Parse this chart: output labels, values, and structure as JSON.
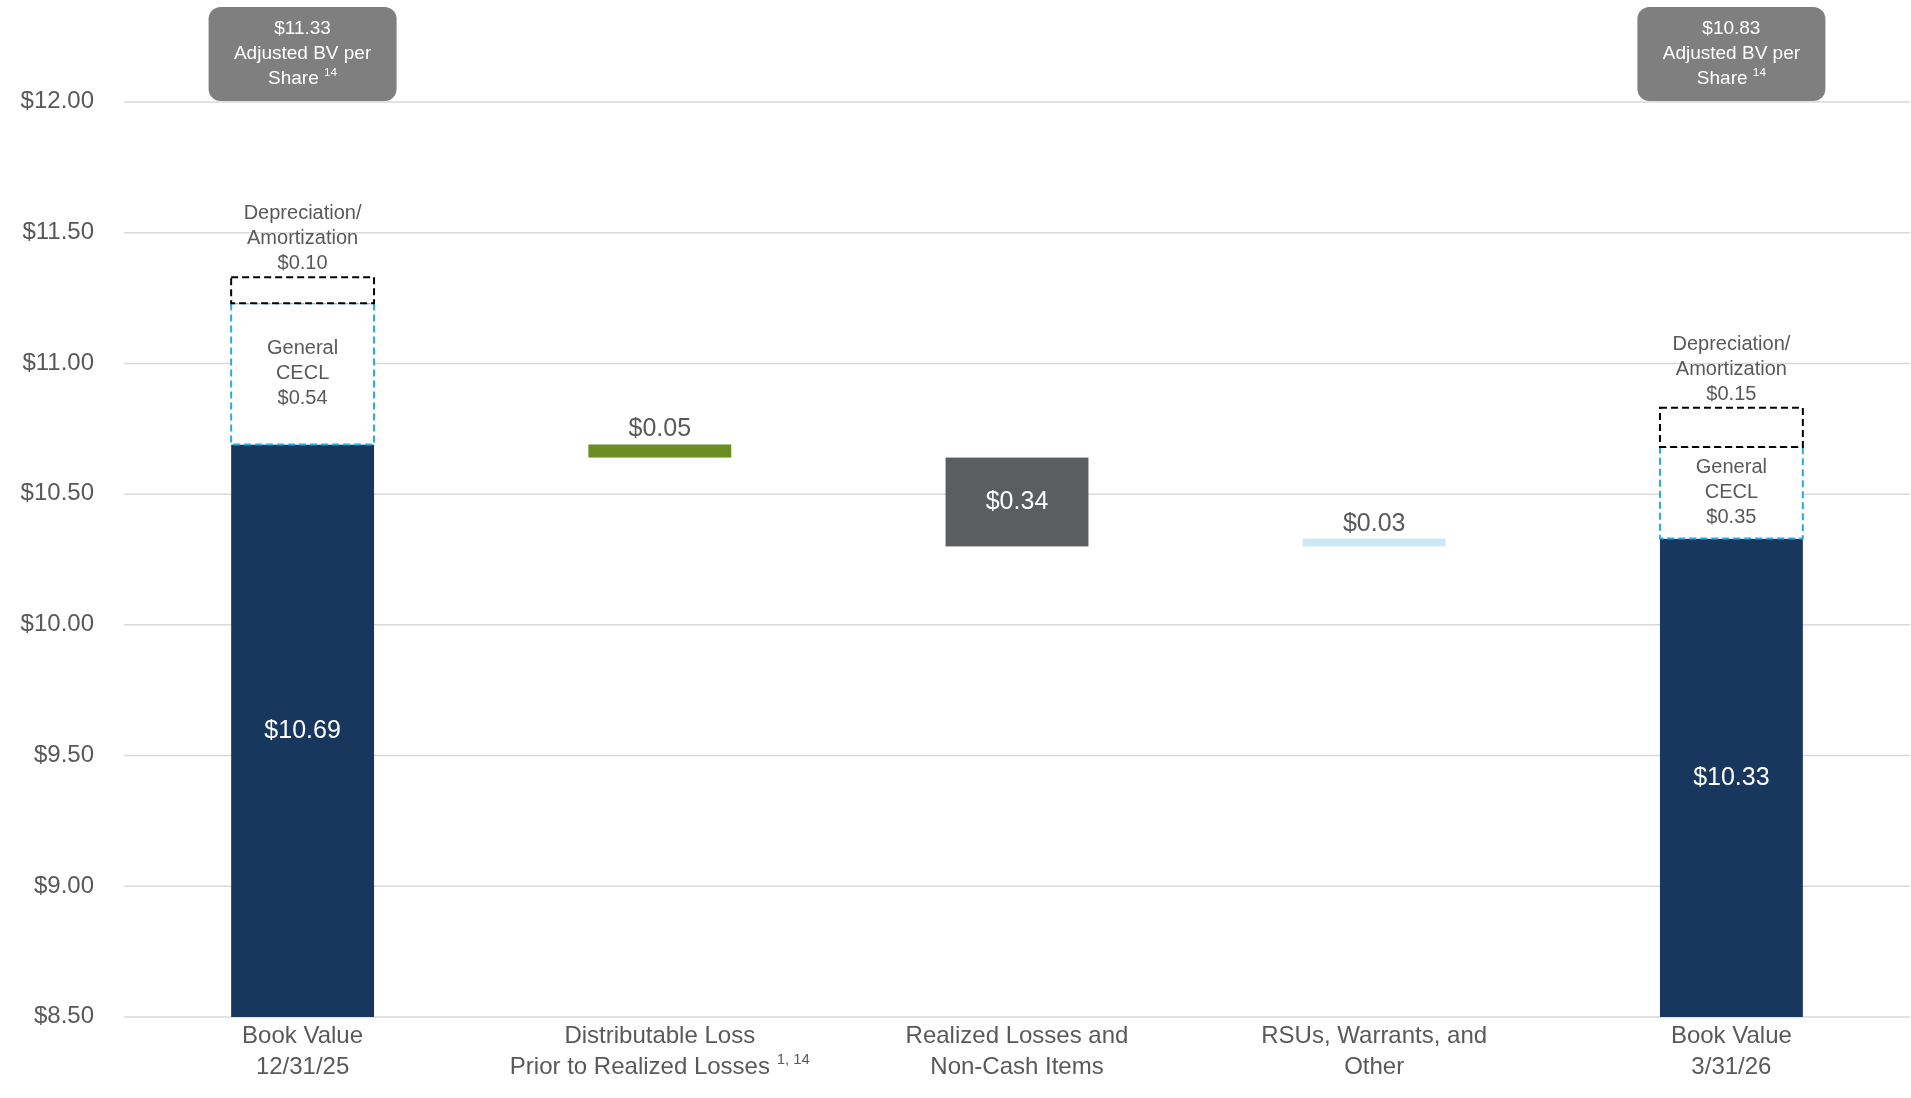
{
  "chart_data": {
    "type": "bar",
    "categories": [
      "Book Value\n12/31/25",
      "Distributable Loss\nPrior to Realized Losses $^{1, 14}$",
      "Realized Losses and\nNon-Cash Items",
      "RSUs, Warrants, and\nOther",
      "Book Value\n3/31/26"
    ],
    "series": [
      {
        "base": [
          null,
          10.64,
          10.3,
          10.3,
          null
        ],
        "colors": [
          "#17375e",
          "#6b8e23",
          "#5a5e60",
          "#c9e9f6",
          "#17375e"
        ],
        "values": [
          10.69,
          0.05,
          0.34,
          0.03,
          10.33
        ],
        "value_labels": [
          "$10.69",
          "$0.05",
          "$0.34",
          "$0.03",
          "$10.33"
        ]
      },
      {
        "name": "General CECL",
        "base": [
          10.69,
          null,
          null,
          null,
          10.33
        ],
        "color": "#29abe2",
        "line_style": "dashed",
        "values": [
          0.54,
          null,
          null,
          null,
          0.35
        ],
        "value_labels": [
          "$0.54",
          null,
          null,
          null,
          "$0.35"
        ]
      },
      {
        "name": "Depreciation/Amortization",
        "base": [
          11.23,
          null,
          null,
          null,
          10.68
        ],
        "color": "#000000",
        "line_style": "dashed",
        "values": [
          0.1,
          null,
          null,
          null,
          0.15
        ],
        "value_labels": [
          "$0.10",
          null,
          null,
          null,
          "$0.15"
        ]
      }
    ],
    "ylim": [
      8.5,
      12.0
    ],
    "yticks": [
      {
        "value": 8.5,
        "label": "$8.50"
      },
      {
        "value": 9.0,
        "label": "$9.00"
      },
      {
        "value": 9.5,
        "label": "$9.50"
      },
      {
        "value": 10.0,
        "label": "$10.00"
      },
      {
        "value": 10.5,
        "label": "$10.50"
      },
      {
        "value": 11.0,
        "label": "$11.00"
      },
      {
        "value": 11.5,
        "label": "$11.50"
      },
      {
        "value": 12.0,
        "label": "$12.00"
      }
    ],
    "grid": "y",
    "annotations": [
      "$11.33\nAdjusted BV per\nShare $^{14}$",
      "$10.83\nAdjusted BV per\nShare $^{14}$"
    ]
  }
}
